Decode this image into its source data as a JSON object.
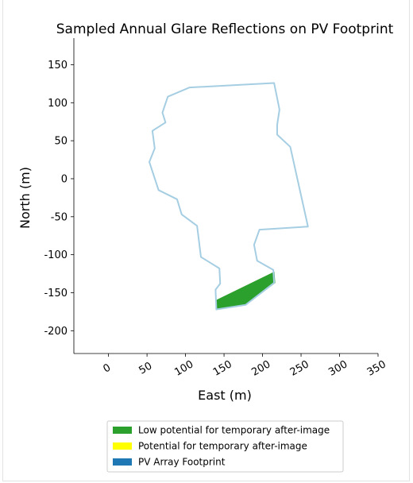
{
  "chart_data": {
    "type": "area",
    "title": "Sampled Annual Glare Reflections on PV Footprint",
    "xlabel": "East (m)",
    "ylabel": "North (m)",
    "xlim": [
      -45,
      350
    ],
    "ylim": [
      -230,
      185
    ],
    "x_ticks": [
      0,
      50,
      100,
      150,
      200,
      250,
      300,
      350
    ],
    "y_ticks": [
      150,
      100,
      50,
      0,
      -50,
      -100,
      -150,
      -200
    ],
    "x_tick_labels": [
      "0",
      "50",
      "100",
      "150",
      "200",
      "250",
      "300",
      "350"
    ],
    "y_tick_labels": [
      "150",
      "100",
      "50",
      "0",
      "-50",
      "-100",
      "-150",
      "-200"
    ],
    "grid": false,
    "legend_position": "bottom",
    "series": [
      {
        "name": "Low potential for temporary after-image",
        "color": "#2ca02c",
        "kind": "filled-polygon",
        "points": [
          [
            140,
            -160
          ],
          [
            215,
            -123
          ],
          [
            216,
            -137
          ],
          [
            178,
            -166
          ],
          [
            140,
            -172
          ]
        ]
      },
      {
        "name": "Potential for temporary after-image",
        "color": "#ffff00",
        "kind": "filled-polygon",
        "points": []
      },
      {
        "name": "PV Array Footprint",
        "color": "#1f77b4",
        "outline_color": "#a6cee3",
        "kind": "outline-polygon",
        "points": [
          [
            215,
            126
          ],
          [
            222,
            91
          ],
          [
            219,
            71
          ],
          [
            219,
            58
          ],
          [
            236,
            42
          ],
          [
            259,
            -63
          ],
          [
            196,
            -67
          ],
          [
            189,
            -87
          ],
          [
            193,
            -108
          ],
          [
            214,
            -120
          ],
          [
            215,
            -137
          ],
          [
            178,
            -166
          ],
          [
            140,
            -172
          ],
          [
            139,
            -146
          ],
          [
            145,
            -138
          ],
          [
            144,
            -118
          ],
          [
            120,
            -103
          ],
          [
            115,
            -62
          ],
          [
            95,
            -47
          ],
          [
            89,
            -27
          ],
          [
            65,
            -15
          ],
          [
            53,
            22
          ],
          [
            60,
            40
          ],
          [
            57,
            63
          ],
          [
            74,
            74
          ],
          [
            70,
            87
          ],
          [
            77,
            108
          ],
          [
            105,
            120
          ]
        ]
      }
    ]
  }
}
